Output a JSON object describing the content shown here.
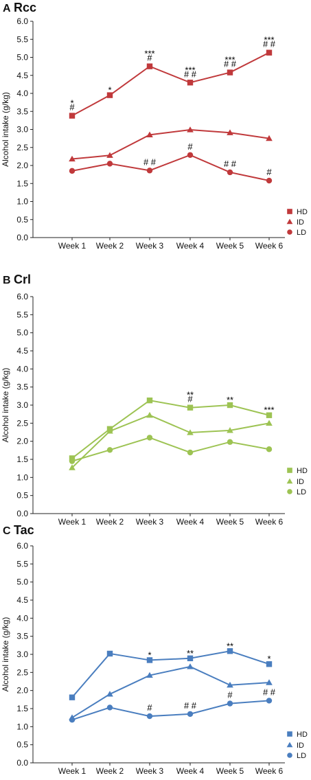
{
  "chart_data": [
    {
      "type": "line",
      "panel_letter": "A",
      "title": "Rcc",
      "ylabel": "Alcohol intake (g/kg)",
      "xlabel": "",
      "ylim": [
        0,
        6
      ],
      "yticks": [
        "0.0",
        "0.5",
        "1.0",
        "1.5",
        "2.0",
        "2.5",
        "3.0",
        "3.5",
        "4.0",
        "4.5",
        "5.0",
        "5.5",
        "6.0"
      ],
      "categories": [
        "Week 1",
        "Week 2",
        "Week 3",
        "Week 4",
        "Week 5",
        "Week 6"
      ],
      "color": "#c0393b",
      "legend_position": "bottom-right",
      "series": [
        {
          "name": "HD",
          "marker": "square",
          "values": [
            3.38,
            3.95,
            4.75,
            4.3,
            4.58,
            5.13
          ],
          "annotations": [
            [
              "*",
              "#"
            ],
            [
              "*"
            ],
            [
              "***",
              "#"
            ],
            [
              "***",
              "##"
            ],
            [
              "***",
              "##"
            ],
            [
              "***",
              "##"
            ]
          ]
        },
        {
          "name": "ID",
          "marker": "triangle",
          "values": [
            2.18,
            2.28,
            2.85,
            2.99,
            2.91,
            2.75
          ],
          "annotations": [
            [],
            [],
            [],
            [],
            [],
            []
          ]
        },
        {
          "name": "LD",
          "marker": "circle",
          "values": [
            1.85,
            2.05,
            1.86,
            2.29,
            1.81,
            1.58
          ],
          "annotations": [
            [],
            [],
            [
              "##"
            ],
            [
              "#"
            ],
            [
              "##"
            ],
            [
              "#"
            ]
          ]
        }
      ]
    },
    {
      "type": "line",
      "panel_letter": "B",
      "title": "Crl",
      "ylabel": "Alcohol intake (g/kg)",
      "xlabel": "",
      "ylim": [
        0,
        6
      ],
      "yticks": [
        "0.0",
        "0.5",
        "1.0",
        "1.5",
        "2.0",
        "2.5",
        "3.0",
        "3.5",
        "4.0",
        "4.5",
        "5.0",
        "5.5",
        "6.0"
      ],
      "categories": [
        "Week 1",
        "Week 2",
        "Week 3",
        "Week 4",
        "Week 5",
        "Week 6"
      ],
      "color": "#9dc353",
      "legend_position": "bottom-right",
      "series": [
        {
          "name": "HD",
          "marker": "square",
          "values": [
            1.53,
            2.34,
            3.13,
            2.93,
            3.0,
            2.72
          ],
          "annotations": [
            [],
            [],
            [],
            [
              "**",
              "#"
            ],
            [
              "**"
            ],
            [
              "***"
            ]
          ]
        },
        {
          "name": "ID",
          "marker": "triangle",
          "values": [
            1.27,
            2.28,
            2.72,
            2.24,
            2.3,
            2.5
          ],
          "annotations": [
            [],
            [],
            [],
            [],
            [],
            []
          ]
        },
        {
          "name": "LD",
          "marker": "circle",
          "values": [
            1.45,
            1.76,
            2.1,
            1.69,
            1.98,
            1.78
          ],
          "annotations": [
            [],
            [],
            [],
            [],
            [],
            []
          ]
        }
      ]
    },
    {
      "type": "line",
      "panel_letter": "C",
      "title": "Tac",
      "ylabel": "Alcohol intake (g/kg)",
      "xlabel": "",
      "ylim": [
        0,
        6
      ],
      "yticks": [
        "0.0",
        "0.5",
        "1.0",
        "1.5",
        "2.0",
        "2.5",
        "3.0",
        "3.5",
        "4.0",
        "4.5",
        "5.0",
        "5.5",
        "6.0"
      ],
      "categories": [
        "Week 1",
        "Week 2",
        "Week 3",
        "Week 4",
        "Week 5",
        "Week 6"
      ],
      "color": "#4a7ebf",
      "legend_position": "bottom-right",
      "series": [
        {
          "name": "HD",
          "marker": "square",
          "values": [
            1.81,
            3.02,
            2.84,
            2.89,
            3.09,
            2.73
          ],
          "annotations": [
            [],
            [],
            [
              "*"
            ],
            [
              "**"
            ],
            [
              "**"
            ],
            [
              "*"
            ]
          ]
        },
        {
          "name": "ID",
          "marker": "triangle",
          "values": [
            1.25,
            1.9,
            2.42,
            2.66,
            2.15,
            2.22
          ],
          "annotations": [
            [],
            [],
            [],
            [],
            [],
            []
          ]
        },
        {
          "name": "LD",
          "marker": "circle",
          "values": [
            1.19,
            1.53,
            1.29,
            1.35,
            1.64,
            1.72
          ],
          "annotations": [
            [],
            [],
            [
              "#"
            ],
            [
              "##"
            ],
            [
              "#"
            ],
            [
              "##"
            ]
          ]
        }
      ]
    }
  ]
}
